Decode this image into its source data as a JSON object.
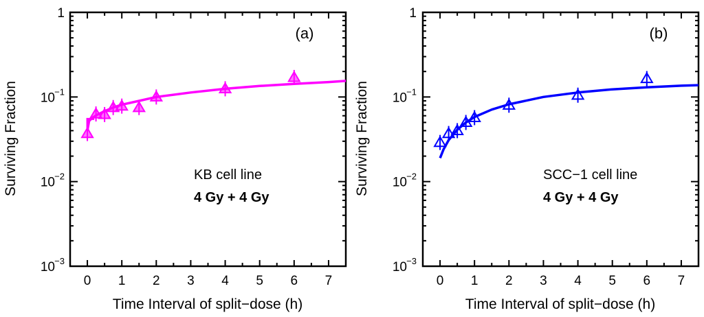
{
  "chart_data": [
    {
      "type": "scatter",
      "panel_label": "(a)",
      "xlabel": "Time Interval of split−dose (h)",
      "ylabel": "Surviving Fraction",
      "xlim": [
        -0.5,
        7.5
      ],
      "ylim": [
        0.001,
        1
      ],
      "yscale": "log",
      "x_ticks": [
        "0",
        "1",
        "2",
        "3",
        "4",
        "5",
        "6",
        "7"
      ],
      "y_ticks": [
        {
          "value": 1,
          "base": "1",
          "exp": ""
        },
        {
          "value": 0.1,
          "base": "10",
          "exp": "−1"
        },
        {
          "value": 0.01,
          "base": "10",
          "exp": "−2"
        },
        {
          "value": 0.001,
          "base": "10",
          "exp": "−3"
        }
      ],
      "annotation": [
        "KB cell line",
        "4 Gy + 4 Gy"
      ],
      "color": "#ff00ff",
      "marker": "filled-triangle",
      "series": [
        {
          "name": "KB cell line",
          "points": [
            {
              "x": 0,
              "y": 0.037
            },
            {
              "x": 0.25,
              "y": 0.063
            },
            {
              "x": 0.5,
              "y": 0.062
            },
            {
              "x": 0.75,
              "y": 0.075
            },
            {
              "x": 1.0,
              "y": 0.078
            },
            {
              "x": 1.5,
              "y": 0.075
            },
            {
              "x": 2.0,
              "y": 0.1
            },
            {
              "x": 4.0,
              "y": 0.125
            },
            {
              "x": 6.0,
              "y": 0.17
            }
          ],
          "fit": [
            {
              "x": 0,
              "y": 0.04
            },
            {
              "x": 0.05,
              "y": 0.052
            },
            {
              "x": 0.15,
              "y": 0.057
            },
            {
              "x": 0.3,
              "y": 0.062
            },
            {
              "x": 0.5,
              "y": 0.068
            },
            {
              "x": 0.75,
              "y": 0.075
            },
            {
              "x": 1.0,
              "y": 0.081
            },
            {
              "x": 1.5,
              "y": 0.09
            },
            {
              "x": 2.0,
              "y": 0.1
            },
            {
              "x": 3.0,
              "y": 0.113
            },
            {
              "x": 4.0,
              "y": 0.125
            },
            {
              "x": 5.0,
              "y": 0.135
            },
            {
              "x": 6.0,
              "y": 0.143
            },
            {
              "x": 7.0,
              "y": 0.15
            },
            {
              "x": 7.5,
              "y": 0.155
            }
          ],
          "fit_start_box": {
            "x": 0,
            "y0": 0.04,
            "y1": 0.055,
            "x1": 0.2
          }
        }
      ]
    },
    {
      "type": "scatter",
      "panel_label": "(b)",
      "xlabel": "Time Interval of split−dose (h)",
      "ylabel": "Surviving Fraction",
      "xlim": [
        -0.5,
        7.5
      ],
      "ylim": [
        0.001,
        1
      ],
      "yscale": "log",
      "x_ticks": [
        "0",
        "1",
        "2",
        "3",
        "4",
        "5",
        "6",
        "7"
      ],
      "y_ticks": [
        {
          "value": 1,
          "base": "1",
          "exp": ""
        },
        {
          "value": 0.1,
          "base": "10",
          "exp": "−1"
        },
        {
          "value": 0.01,
          "base": "10",
          "exp": "−2"
        },
        {
          "value": 0.001,
          "base": "10",
          "exp": "−3"
        }
      ],
      "annotation": [
        "SCC−1 cell line",
        "4 Gy + 4 Gy"
      ],
      "color": "#0000ff",
      "marker": "open-triangle",
      "series": [
        {
          "name": "SCC-1 cell line",
          "points": [
            {
              "x": 0,
              "y": 0.029
            },
            {
              "x": 0.25,
              "y": 0.037
            },
            {
              "x": 0.5,
              "y": 0.04
            },
            {
              "x": 0.75,
              "y": 0.05
            },
            {
              "x": 1.0,
              "y": 0.057
            },
            {
              "x": 2.0,
              "y": 0.08
            },
            {
              "x": 4.0,
              "y": 0.105
            },
            {
              "x": 6.0,
              "y": 0.165
            }
          ],
          "fit": [
            {
              "x": 0,
              "y": 0.019
            },
            {
              "x": 0.1,
              "y": 0.024
            },
            {
              "x": 0.25,
              "y": 0.031
            },
            {
              "x": 0.5,
              "y": 0.041
            },
            {
              "x": 0.75,
              "y": 0.05
            },
            {
              "x": 1.0,
              "y": 0.058
            },
            {
              "x": 1.5,
              "y": 0.071
            },
            {
              "x": 2.0,
              "y": 0.082
            },
            {
              "x": 3.0,
              "y": 0.1
            },
            {
              "x": 4.0,
              "y": 0.113
            },
            {
              "x": 5.0,
              "y": 0.123
            },
            {
              "x": 6.0,
              "y": 0.13
            },
            {
              "x": 7.0,
              "y": 0.136
            },
            {
              "x": 7.5,
              "y": 0.138
            }
          ],
          "fit_start_box": null
        }
      ]
    }
  ]
}
